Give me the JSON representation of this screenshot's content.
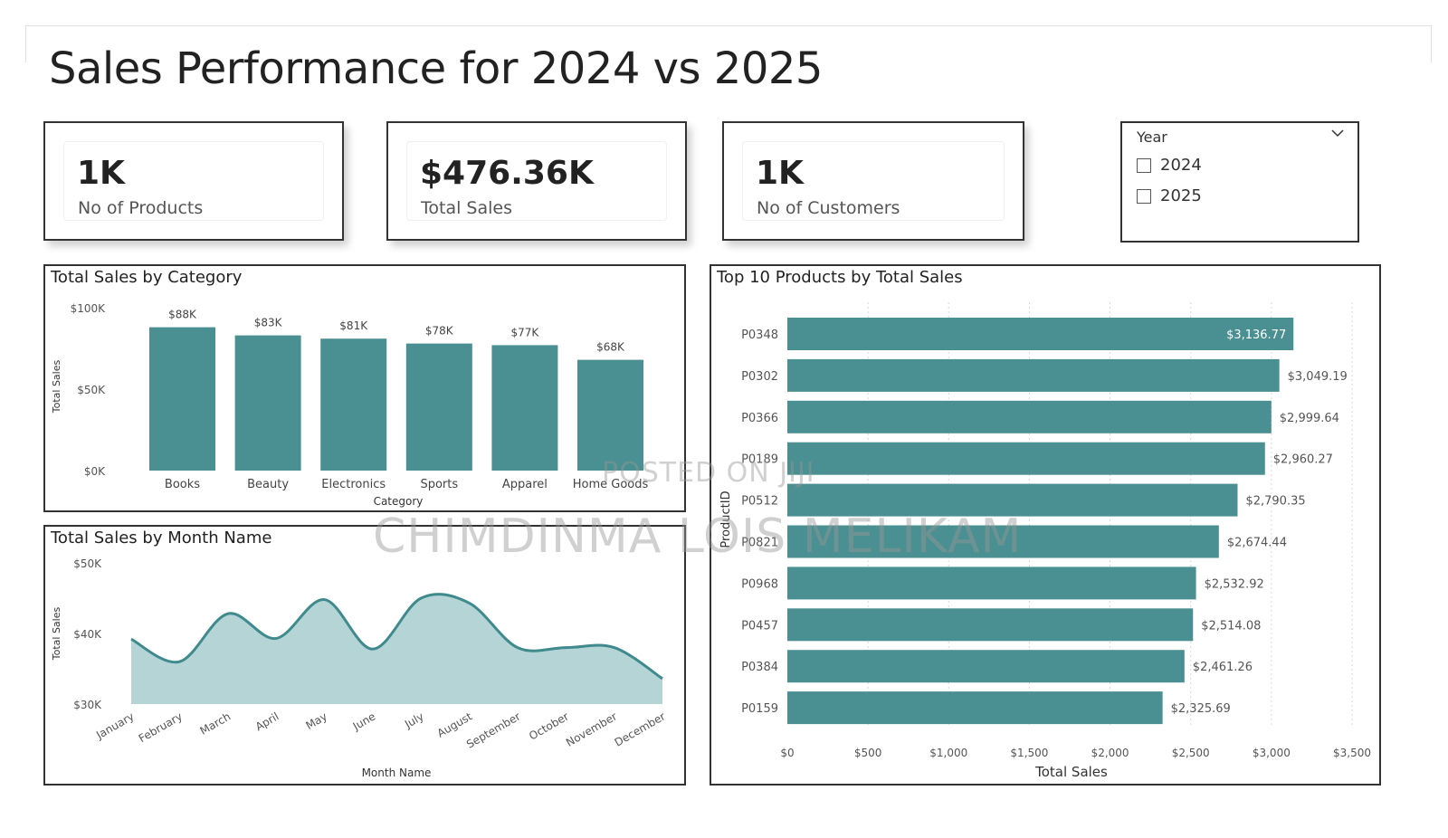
{
  "page": {
    "title": "Sales Performance for 2024 vs 2025"
  },
  "kpis": [
    {
      "value": "1K",
      "label": "No of Products"
    },
    {
      "value": "$476.36K",
      "label": "Total Sales"
    },
    {
      "value": "1K",
      "label": "No of Customers"
    }
  ],
  "slicer": {
    "header": "Year",
    "options": [
      {
        "label": "2024",
        "checked": false
      },
      {
        "label": "2025",
        "checked": false
      }
    ]
  },
  "watermark": {
    "line1": "POSTED ON JIJI",
    "line2": "CHIMDINMA LOIS MELIKAM"
  },
  "colors": {
    "teal": "#4a8f91",
    "area_fill": "#b4d4d6",
    "line": "#3f8a8d"
  },
  "chart_data": [
    {
      "type": "bar",
      "title": "Total Sales by Category",
      "xlabel": "Category",
      "ylabel": "Total Sales",
      "categories": [
        "Books",
        "Beauty",
        "Electronics",
        "Sports",
        "Apparel",
        "Home Goods"
      ],
      "values": [
        88,
        83,
        81,
        78,
        77,
        68
      ],
      "data_labels": [
        "$88K",
        "$83K",
        "$81K",
        "$78K",
        "$77K",
        "$68K"
      ],
      "yticks": [
        "$0K",
        "$50K",
        "$100K"
      ],
      "ylim": [
        0,
        100
      ]
    },
    {
      "type": "area",
      "title": "Total Sales by Month Name",
      "xlabel": "Month Name",
      "ylabel": "Total Sales",
      "categories": [
        "January",
        "February",
        "March",
        "April",
        "May",
        "June",
        "July",
        "August",
        "September",
        "October",
        "November",
        "December"
      ],
      "values": [
        39.2,
        36.0,
        42.8,
        39.3,
        44.8,
        37.8,
        45.0,
        44.3,
        38.0,
        38.0,
        38.0,
        33.6
      ],
      "yticks": [
        "$30K",
        "$40K",
        "$50K"
      ],
      "ylim": [
        30,
        50
      ]
    },
    {
      "type": "bar",
      "orientation": "horizontal",
      "title": "Top 10 Products by Total Sales",
      "xlabel": "Total Sales",
      "ylabel": "ProductID",
      "categories": [
        "P0348",
        "P0302",
        "P0366",
        "P0189",
        "P0512",
        "P0821",
        "P0968",
        "P0457",
        "P0384",
        "P0159"
      ],
      "values": [
        3136.77,
        3049.19,
        2999.64,
        2960.27,
        2790.35,
        2674.44,
        2532.92,
        2514.08,
        2461.26,
        2325.69
      ],
      "data_labels": [
        "$3,136.77",
        "$3,049.19",
        "$2,999.64",
        "$2,960.27",
        "$2,790.35",
        "$2,674.44",
        "$2,532.92",
        "$2,514.08",
        "$2,461.26",
        "$2,325.69"
      ],
      "xticks": [
        "$0",
        "$500",
        "$1,000",
        "$1,500",
        "$2,000",
        "$2,500",
        "$3,000",
        "$3,500"
      ],
      "xlim": [
        0,
        3500
      ],
      "grid": true
    }
  ]
}
